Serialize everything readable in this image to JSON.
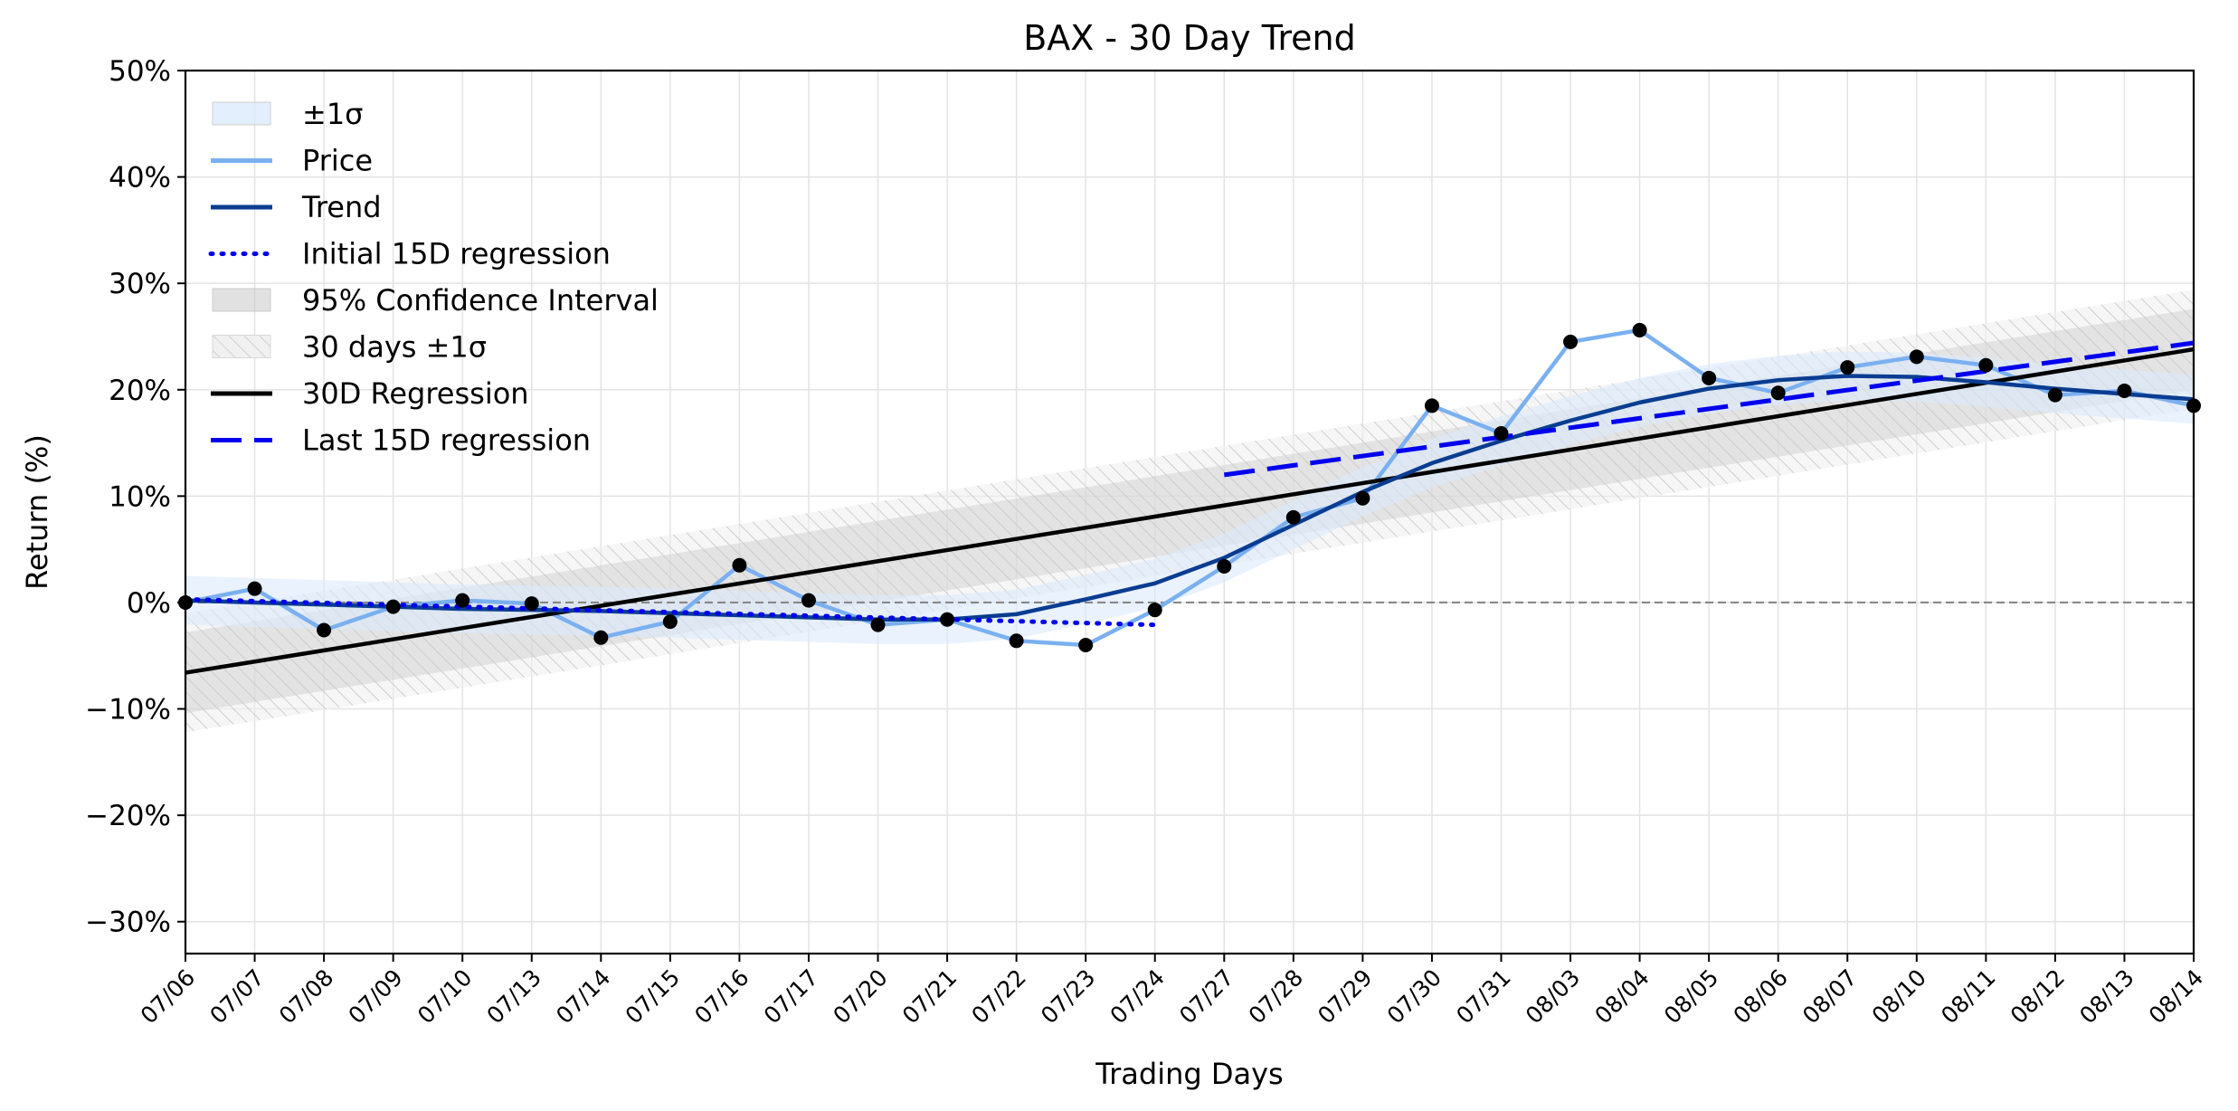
{
  "chart_data": {
    "type": "line",
    "title": "BAX - 30 Day Trend",
    "xlabel": "Trading Days",
    "ylabel": "Return (%)",
    "ylim": [
      -33,
      50
    ],
    "yticks": [
      -30,
      -20,
      -10,
      0,
      10,
      20,
      30,
      40,
      50
    ],
    "ytick_labels": [
      "−30%",
      "−20%",
      "−10%",
      "0%",
      "10%",
      "20%",
      "30%",
      "40%",
      "50%"
    ],
    "grid": true,
    "legend_position": "top-left",
    "categories": [
      "07/06",
      "07/07",
      "07/08",
      "07/09",
      "07/10",
      "07/13",
      "07/14",
      "07/15",
      "07/16",
      "07/17",
      "07/20",
      "07/21",
      "07/22",
      "07/23",
      "07/24",
      "07/27",
      "07/28",
      "07/29",
      "07/30",
      "07/31",
      "08/03",
      "08/04",
      "08/05",
      "08/06",
      "08/07",
      "08/10",
      "08/11",
      "08/12",
      "08/13",
      "08/14"
    ],
    "series": [
      {
        "name": "Price",
        "color": "#7ab0f0",
        "values": [
          0.0,
          1.3,
          -2.6,
          -0.4,
          0.2,
          -0.1,
          -3.3,
          -1.8,
          3.5,
          0.2,
          -2.1,
          -1.6,
          -3.6,
          -4.0,
          -0.7,
          3.4,
          8.0,
          9.8,
          18.5,
          15.9,
          24.5,
          25.6,
          21.1,
          19.7,
          22.1,
          23.1,
          22.3,
          19.5,
          19.9,
          18.5
        ]
      },
      {
        "name": "Trend",
        "color": "#0a3d91",
        "values": [
          0.2,
          0.0,
          -0.2,
          -0.4,
          -0.6,
          -0.7,
          -0.8,
          -1.0,
          -1.2,
          -1.4,
          -1.6,
          -1.6,
          -1.1,
          0.3,
          1.8,
          4.2,
          7.3,
          10.4,
          13.1,
          15.2,
          17.1,
          18.8,
          20.1,
          20.9,
          21.3,
          21.2,
          20.7,
          20.1,
          19.6,
          19.1
        ]
      },
      {
        "name": "Initial 15D regression",
        "color": "#0000ee",
        "start_index": 0,
        "end_index": 14,
        "y_start": 0.3,
        "y_end": -2.1
      },
      {
        "name": "30D Regression",
        "color": "#000000",
        "start_index": 0,
        "end_index": 29,
        "y_start": -6.6,
        "y_end": 23.8
      },
      {
        "name": "Last 15D regression",
        "color": "#0000ee",
        "start_index": 15,
        "end_index": 29,
        "y_start": 12.0,
        "y_end": 24.4
      }
    ],
    "bands": [
      {
        "name": "±1σ",
        "around": "Trend",
        "sigma": 2.3,
        "color": "#dbeafc"
      },
      {
        "name": "95% Confidence Interval",
        "around": "30D Regression",
        "sigma": 3.8,
        "color": "#c8c8c8"
      },
      {
        "name": "30 days ±1σ",
        "around": "30D Regression",
        "sigma": 5.6,
        "color": "#eeeeee"
      }
    ],
    "markers": {
      "color": "#000000",
      "on": "Price"
    },
    "reference_line": {
      "y": 0,
      "style": "dashed",
      "color": "#888888"
    },
    "legend": [
      {
        "label": "±1σ",
        "kind": "patch",
        "color": "#dbeafc"
      },
      {
        "label": "Price",
        "kind": "line",
        "color": "#7ab0f0"
      },
      {
        "label": "Trend",
        "kind": "line",
        "color": "#0a3d91"
      },
      {
        "label": "Initial 15D regression",
        "kind": "dotted",
        "color": "#0000ee"
      },
      {
        "label": "95% Confidence Interval",
        "kind": "patch",
        "color": "#c8c8c8"
      },
      {
        "label": "30 days ±1σ",
        "kind": "hatch",
        "color": "#eeeeee"
      },
      {
        "label": "30D Regression",
        "kind": "line",
        "color": "#000000"
      },
      {
        "label": "Last 15D regression",
        "kind": "dashed",
        "color": "#0000ee"
      }
    ]
  }
}
